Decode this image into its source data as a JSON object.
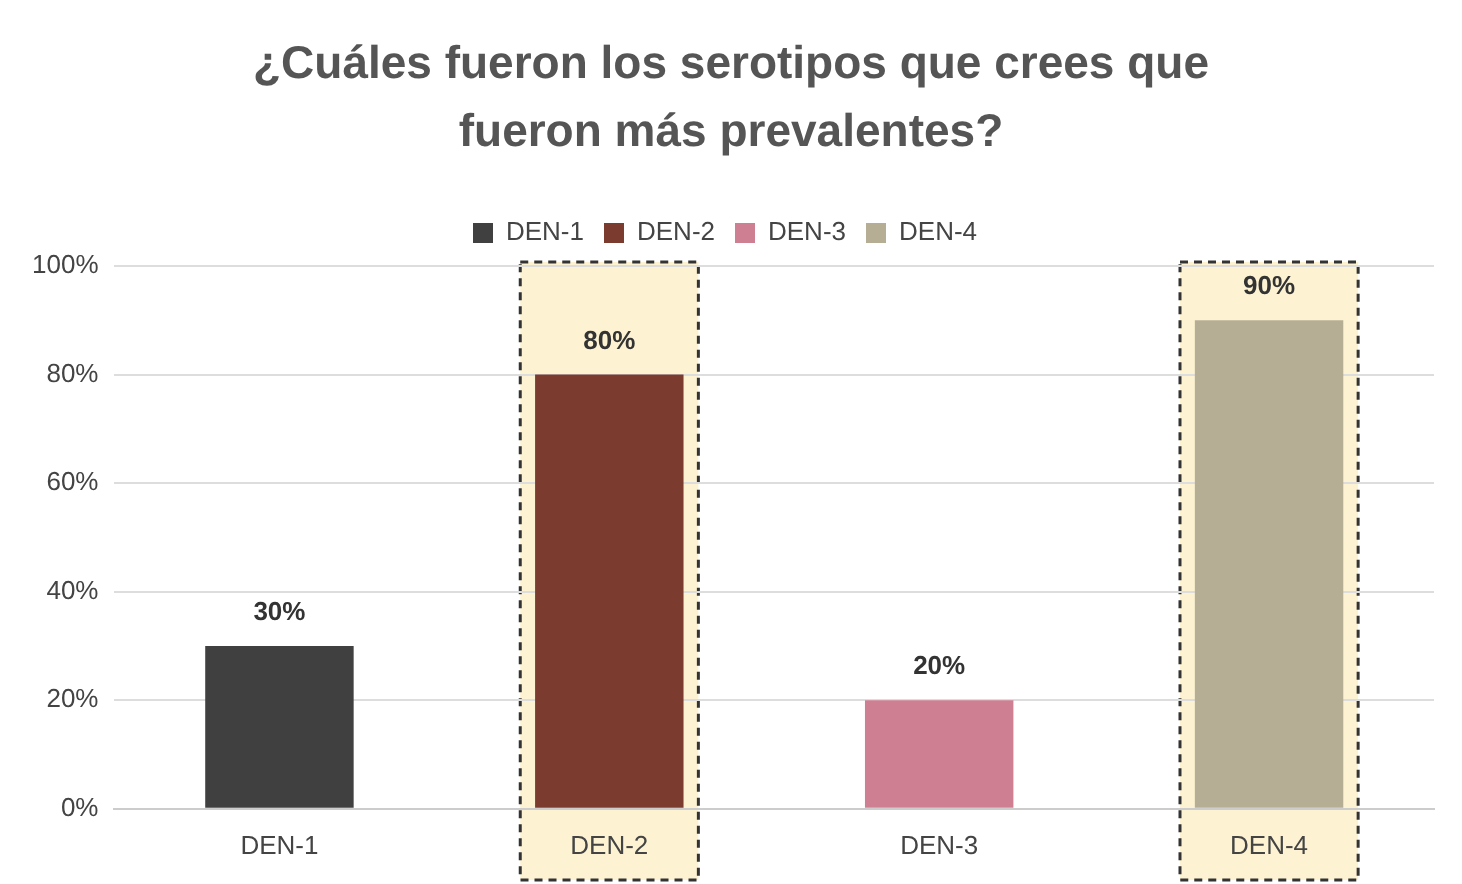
{
  "chart_data": {
    "type": "bar",
    "title": "¿Cuáles fueron los serotipos que crees que fueron más prevalentes?",
    "categories": [
      "DEN-1",
      "DEN-2",
      "DEN-3",
      "DEN-4"
    ],
    "series": [
      {
        "name": "DEN-1",
        "color": "#404040",
        "values": [
          30,
          null,
          null,
          null
        ],
        "value_labels": [
          "30%",
          null,
          null,
          null
        ]
      },
      {
        "name": "DEN-2",
        "color": "#7b3b2f",
        "values": [
          null,
          80,
          null,
          null
        ],
        "value_labels": [
          null,
          "80%",
          null,
          null
        ]
      },
      {
        "name": "DEN-3",
        "color": "#cf7f92",
        "values": [
          null,
          null,
          20,
          null
        ],
        "value_labels": [
          null,
          null,
          "20%",
          null
        ]
      },
      {
        "name": "DEN-4",
        "color": "#b6ae94",
        "values": [
          null,
          null,
          null,
          90
        ],
        "value_labels": [
          null,
          null,
          null,
          "90%"
        ]
      }
    ],
    "ylim": [
      0,
      100
    ],
    "yticks": [
      {
        "value": 0,
        "label": "0%"
      },
      {
        "value": 20,
        "label": "20%"
      },
      {
        "value": 40,
        "label": "40%"
      },
      {
        "value": 60,
        "label": "60%"
      },
      {
        "value": 80,
        "label": "80%"
      },
      {
        "value": 100,
        "label": "100%"
      }
    ],
    "bands": [
      {
        "axis": "x",
        "from": "DEN-2",
        "to": "DEN-2",
        "color": "#fdf3d2"
      },
      {
        "axis": "x",
        "from": "DEN-4",
        "to": "DEN-4",
        "color": "#fdf3d2"
      }
    ],
    "grid": "y",
    "legend": "top"
  }
}
